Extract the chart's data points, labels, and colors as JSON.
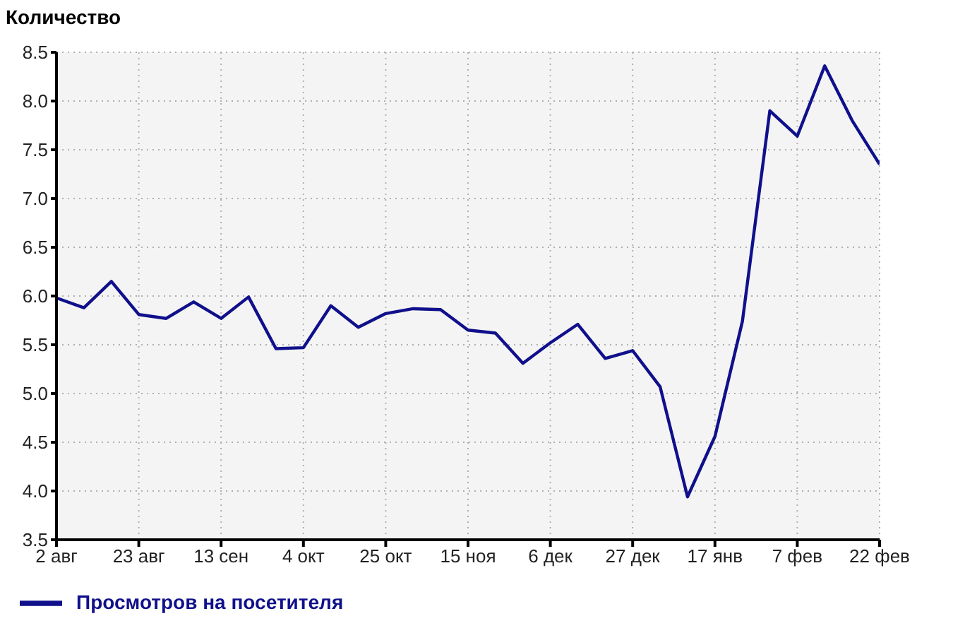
{
  "chart_data": {
    "type": "line",
    "title": "Количество",
    "categories": [
      "2 авг",
      null,
      null,
      "23 авг",
      null,
      null,
      "13 сен",
      null,
      null,
      "4 окт",
      null,
      null,
      "25 окт",
      null,
      null,
      "15 ноя",
      null,
      null,
      "6 дек",
      null,
      null,
      "27 дек",
      null,
      null,
      "17 янв",
      null,
      null,
      "7 фев",
      null,
      null,
      "22 фев"
    ],
    "series": [
      {
        "name": "Просмотров на посетителя",
        "color": "#10108c",
        "values": [
          5.98,
          5.88,
          6.15,
          5.81,
          5.77,
          5.94,
          5.77,
          5.99,
          5.46,
          5.47,
          5.9,
          5.68,
          5.82,
          5.87,
          5.86,
          5.65,
          5.62,
          5.31,
          5.52,
          5.71,
          5.36,
          5.44,
          5.07,
          3.94,
          4.56,
          5.74,
          7.9,
          7.64,
          8.36,
          7.8,
          7.35
        ]
      }
    ],
    "ylim": [
      3.5,
      8.5
    ],
    "yticks": [
      3.5,
      {
        "value": 4,
        "label": "4.0"
      },
      4.5,
      {
        "value": 5,
        "label": "5.0"
      },
      5.5,
      {
        "value": 6,
        "label": "6.0"
      },
      6.5,
      {
        "value": 7,
        "label": "7.0"
      },
      7.5,
      {
        "value": 8,
        "label": "8.0"
      },
      8.5
    ],
    "grid": true,
    "legend": "bottom left",
    "marker": "none",
    "line_style": "solid"
  }
}
